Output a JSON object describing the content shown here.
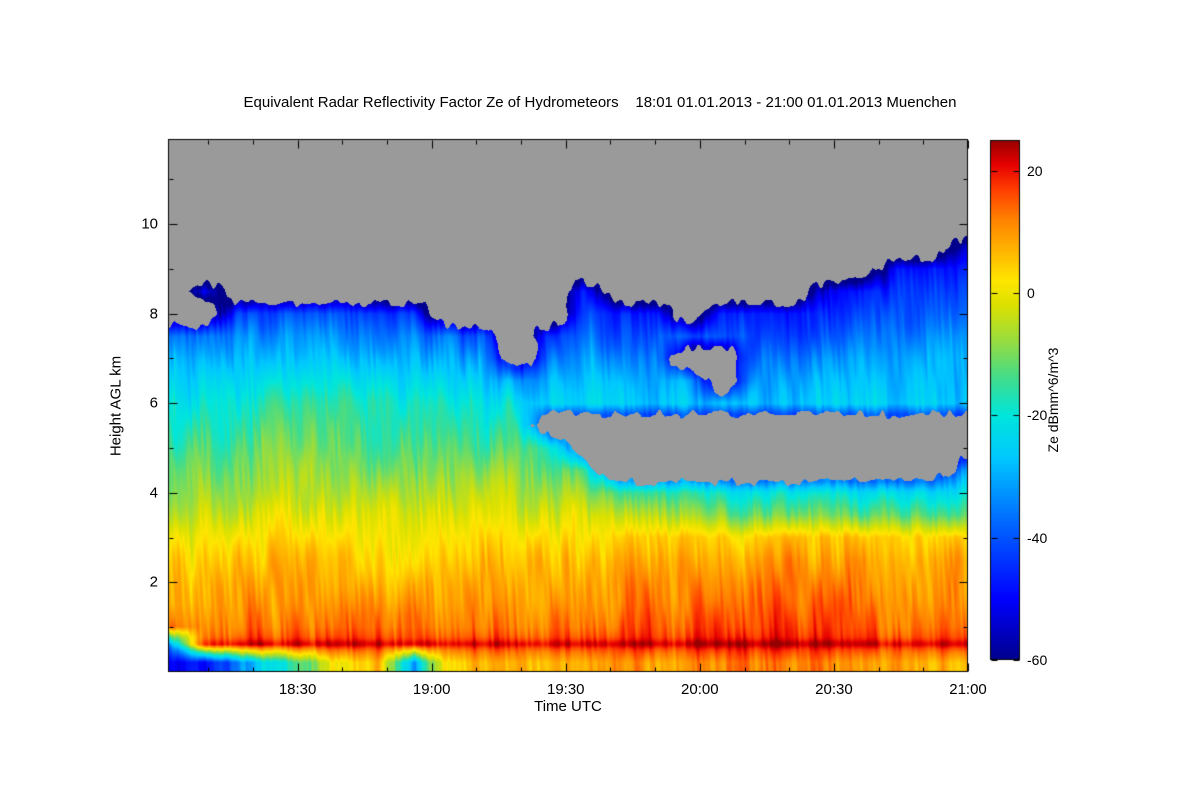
{
  "title": "Equivalent Radar Reflectivity Factor Ze of Hydrometeors    18:01 01.01.2013 - 21:00 01.01.2013 Muenchen",
  "axes": {
    "x": {
      "label": "Time UTC",
      "ticks": [
        "18:30",
        "19:00",
        "19:30",
        "20:00",
        "20:30",
        "21:00"
      ],
      "tick_minutes": [
        29,
        59,
        89,
        119,
        149,
        179
      ],
      "range_minutes": [
        0,
        179
      ],
      "start_time": "18:01",
      "end_time": "21:00"
    },
    "y": {
      "label": "Height AGL km",
      "ticks": [
        2,
        4,
        6,
        8,
        10
      ],
      "range": [
        0,
        11.9
      ]
    }
  },
  "colorbar": {
    "label": "Ze dBmm^6/m^3",
    "ticks": [
      20,
      0,
      -20,
      -40,
      -60
    ],
    "range": [
      -60,
      25
    ]
  },
  "colors": {
    "nodata": "#9A9A9A",
    "frame": "#000000",
    "background": "#FFFFFF"
  },
  "chart_data": {
    "type": "heatmap",
    "title": "Equivalent Radar Reflectivity Factor Ze of Hydrometeors",
    "site": "Muenchen",
    "period": "18:01 01.01.2013 - 21:00 01.01.2013",
    "x_unit": "Time UTC",
    "y_unit": "Height AGL km",
    "value_unit": "Ze dBmm^6/m^3",
    "nodata_color": "#9A9A9A",
    "times": [
      "18:01",
      "18:09",
      "18:17",
      "18:25",
      "18:32",
      "18:40",
      "18:48",
      "18:56",
      "19:03",
      "19:11",
      "19:19",
      "19:27",
      "19:34",
      "19:42",
      "19:50",
      "19:58",
      "20:05",
      "20:13",
      "20:21",
      "20:29",
      "20:36",
      "20:44",
      "20:52",
      "21:00"
    ],
    "time_minutes": [
      0,
      8,
      16,
      24,
      31,
      39,
      47,
      55,
      62,
      70,
      78,
      86,
      93,
      101,
      109,
      117,
      124,
      132,
      140,
      148,
      155,
      163,
      171,
      179
    ],
    "heights": [
      0.2,
      0.6,
      1.0,
      1.5,
      2.0,
      2.5,
      3.0,
      3.5,
      4.0,
      4.5,
      5.0,
      5.5,
      6.0,
      6.5,
      7.0,
      7.5,
      8.0,
      8.5,
      9.0,
      9.5,
      10.0,
      11.0
    ],
    "values": [
      [
        -52,
        -50,
        -35,
        -20,
        -10,
        0,
        6,
        -30,
        4,
        6,
        7,
        8,
        8,
        9,
        10,
        11,
        12,
        12,
        12,
        11,
        10,
        9,
        8,
        7
      ],
      [
        -40,
        14,
        17,
        18,
        18,
        17,
        17,
        16,
        17,
        17,
        17,
        18,
        18,
        18,
        19,
        19,
        20,
        20,
        20,
        19,
        19,
        18,
        18,
        18
      ],
      [
        14,
        11,
        12,
        13,
        13,
        12,
        12,
        11,
        12,
        12,
        12,
        13,
        13,
        14,
        15,
        15,
        16,
        16,
        17,
        16,
        15,
        14,
        14,
        13
      ],
      [
        7,
        8,
        9,
        10,
        10,
        10,
        9,
        9,
        9,
        10,
        10,
        10,
        10,
        11,
        12,
        13,
        13,
        14,
        14,
        14,
        13,
        12,
        12,
        11
      ],
      [
        5,
        6,
        7,
        8,
        8,
        8,
        7,
        7,
        7,
        8,
        8,
        8,
        8,
        9,
        10,
        11,
        11,
        12,
        12,
        12,
        11,
        10,
        10,
        10
      ],
      [
        3,
        3,
        4,
        5,
        6,
        6,
        5,
        4,
        5,
        5,
        6,
        6,
        6,
        6,
        7,
        8,
        8,
        9,
        9,
        9,
        9,
        8,
        8,
        8
      ],
      [
        0,
        0,
        1,
        2,
        3,
        3,
        2,
        1,
        2,
        2,
        3,
        3,
        2,
        2,
        3,
        4,
        4,
        4,
        5,
        5,
        5,
        5,
        4,
        4
      ],
      [
        -4,
        -4,
        -3,
        -1,
        0,
        0,
        -1,
        -2,
        -2,
        -2,
        -1,
        -1,
        -2,
        -6,
        -8,
        -9,
        -10,
        -11,
        -11,
        -12,
        -12,
        -12,
        -13,
        -12
      ],
      [
        -8,
        -8,
        -7,
        -5,
        -4,
        -4,
        -5,
        -6,
        -6,
        -6,
        -5,
        -6,
        -8,
        -16,
        -18,
        -19,
        -20,
        -21,
        -21,
        -22,
        -22,
        -23,
        -24,
        -20
      ],
      [
        -12,
        -12,
        -11,
        -8,
        -7,
        -8,
        -9,
        -10,
        -10,
        -10,
        -9,
        -11,
        -14,
        null,
        null,
        null,
        null,
        null,
        null,
        null,
        null,
        null,
        null,
        -28
      ],
      [
        -16,
        -15,
        -14,
        -11,
        -10,
        -11,
        -12,
        -13,
        -13,
        -14,
        -13,
        -16,
        null,
        null,
        null,
        null,
        null,
        null,
        null,
        null,
        null,
        null,
        null,
        null
      ],
      [
        -19,
        -18,
        -17,
        -13,
        -12,
        -13,
        -15,
        -16,
        -16,
        -17,
        -17,
        null,
        null,
        null,
        null,
        null,
        null,
        null,
        null,
        null,
        null,
        null,
        null,
        null
      ],
      [
        -22,
        -21,
        -20,
        -16,
        -15,
        -16,
        -18,
        -19,
        -19,
        -20,
        -22,
        -24,
        -25,
        -26,
        -27,
        -27,
        -28,
        -28,
        -27,
        -26,
        -26,
        -25,
        -25,
        -25
      ],
      [
        -26,
        -25,
        -24,
        -21,
        -20,
        -21,
        -23,
        -24,
        -24,
        -25,
        -32,
        -28,
        -28,
        -29,
        -30,
        -31,
        null,
        -31,
        -30,
        -29,
        -29,
        -28,
        -27,
        -27
      ],
      [
        -30,
        -30,
        -29,
        -27,
        -26,
        -27,
        -28,
        -30,
        -30,
        -31,
        null,
        -34,
        -32,
        -33,
        -34,
        null,
        null,
        -35,
        -34,
        -33,
        -32,
        -31,
        -30,
        -29
      ],
      [
        -38,
        -36,
        -34,
        -33,
        -32,
        -33,
        -35,
        -36,
        -37,
        -40,
        null,
        -42,
        -38,
        -39,
        -40,
        -41,
        -42,
        -41,
        -40,
        -39,
        -37,
        -35,
        -34,
        -33
      ],
      [
        null,
        null,
        -42,
        -41,
        -40,
        -41,
        -43,
        -44,
        null,
        null,
        null,
        null,
        -44,
        -45,
        -46,
        null,
        -47,
        -46,
        -45,
        -44,
        -42,
        -40,
        -39,
        -38
      ],
      [
        null,
        -50,
        null,
        null,
        null,
        null,
        null,
        null,
        null,
        null,
        null,
        null,
        -49,
        null,
        null,
        null,
        null,
        null,
        null,
        -49,
        -47,
        -45,
        -44,
        -43
      ],
      [
        null,
        null,
        null,
        null,
        null,
        null,
        null,
        null,
        null,
        null,
        null,
        null,
        null,
        null,
        null,
        null,
        null,
        null,
        null,
        null,
        null,
        -50,
        -49,
        -48
      ],
      [
        null,
        null,
        null,
        null,
        null,
        null,
        null,
        null,
        null,
        null,
        null,
        null,
        null,
        null,
        null,
        null,
        null,
        null,
        null,
        null,
        null,
        null,
        null,
        -52
      ],
      [
        null,
        null,
        null,
        null,
        null,
        null,
        null,
        null,
        null,
        null,
        null,
        null,
        null,
        null,
        null,
        null,
        null,
        null,
        null,
        null,
        null,
        null,
        null,
        null
      ],
      [
        null,
        null,
        null,
        null,
        null,
        null,
        null,
        null,
        null,
        null,
        null,
        null,
        null,
        null,
        null,
        null,
        null,
        null,
        null,
        null,
        null,
        null,
        null,
        null
      ]
    ],
    "colormap": [
      {
        "v": -60,
        "c": "#00008C"
      },
      {
        "v": -50,
        "c": "#0000FF"
      },
      {
        "v": -38,
        "c": "#0064FF"
      },
      {
        "v": -27,
        "c": "#00C8FF"
      },
      {
        "v": -20,
        "c": "#00E6DC"
      },
      {
        "v": -14,
        "c": "#41DC8C"
      },
      {
        "v": -8,
        "c": "#96DC41"
      },
      {
        "v": -2,
        "c": "#DCE100"
      },
      {
        "v": 2,
        "c": "#FFE600"
      },
      {
        "v": 7,
        "c": "#FFB400"
      },
      {
        "v": 12,
        "c": "#FF8200"
      },
      {
        "v": 17,
        "c": "#FF3C00"
      },
      {
        "v": 21,
        "c": "#E60000"
      },
      {
        "v": 25,
        "c": "#960000"
      }
    ],
    "render_hints": {
      "noise_coarse": 3.5,
      "noise_fine": 3.0,
      "bright_band_height": 0.62,
      "bright_band_width": 0.1,
      "bright_band_boost": 4,
      "edge_darken": 14
    }
  }
}
